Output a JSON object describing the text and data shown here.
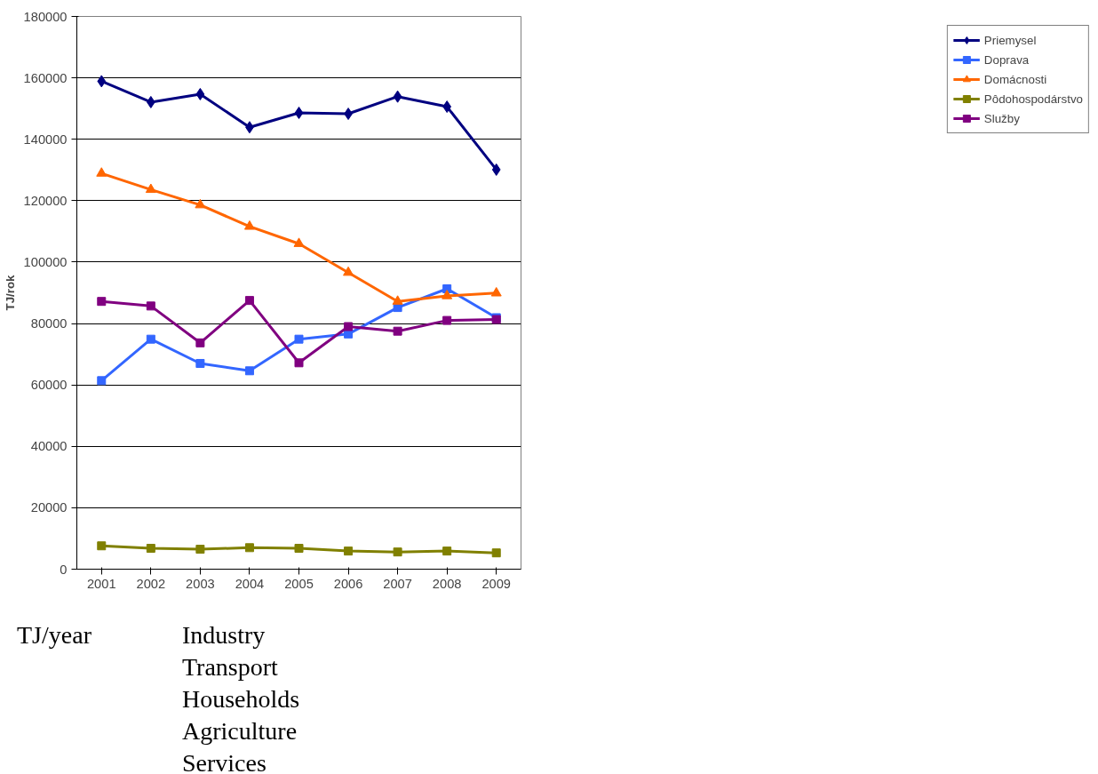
{
  "chart_data": {
    "type": "line",
    "ylabel": "TJ/rok",
    "categories": [
      "2001",
      "2002",
      "2003",
      "2004",
      "2005",
      "2006",
      "2007",
      "2008",
      "2009"
    ],
    "ylim": [
      0,
      180000
    ],
    "yticks": [
      0,
      20000,
      40000,
      60000,
      80000,
      100000,
      120000,
      140000,
      160000,
      180000
    ],
    "grid": "y",
    "legend": "right",
    "line_style": "solid",
    "series": [
      {
        "name": "Priemysel",
        "color": "#000080",
        "marker": "diamond",
        "values": [
          158900,
          152100,
          154700,
          143900,
          148600,
          148300,
          153900,
          150600,
          130100
        ]
      },
      {
        "name": "Doprava",
        "color": "#3366ff",
        "marker": "square",
        "values": [
          61400,
          74900,
          67000,
          64600,
          74900,
          76600,
          85200,
          91300,
          81900
        ]
      },
      {
        "name": "Domácnosti",
        "color": "#ff6600",
        "marker": "triangle",
        "values": [
          128900,
          123600,
          118600,
          111600,
          106000,
          96600,
          87200,
          89000,
          89900
        ]
      },
      {
        "name": "Pôdohospodárstvo",
        "color": "#808000",
        "marker": "square",
        "values": [
          7600,
          6800,
          6500,
          7000,
          6800,
          5900,
          5600,
          5900,
          5300
        ]
      },
      {
        "name": "Služby",
        "color": "#800080",
        "marker": "square",
        "values": [
          87200,
          85700,
          73700,
          87500,
          67200,
          79000,
          77500,
          81000,
          81300
        ]
      }
    ],
    "annotations": [
      "TJ/year",
      "Industry",
      "Transport",
      "Households",
      "Agriculture",
      "Services"
    ]
  }
}
